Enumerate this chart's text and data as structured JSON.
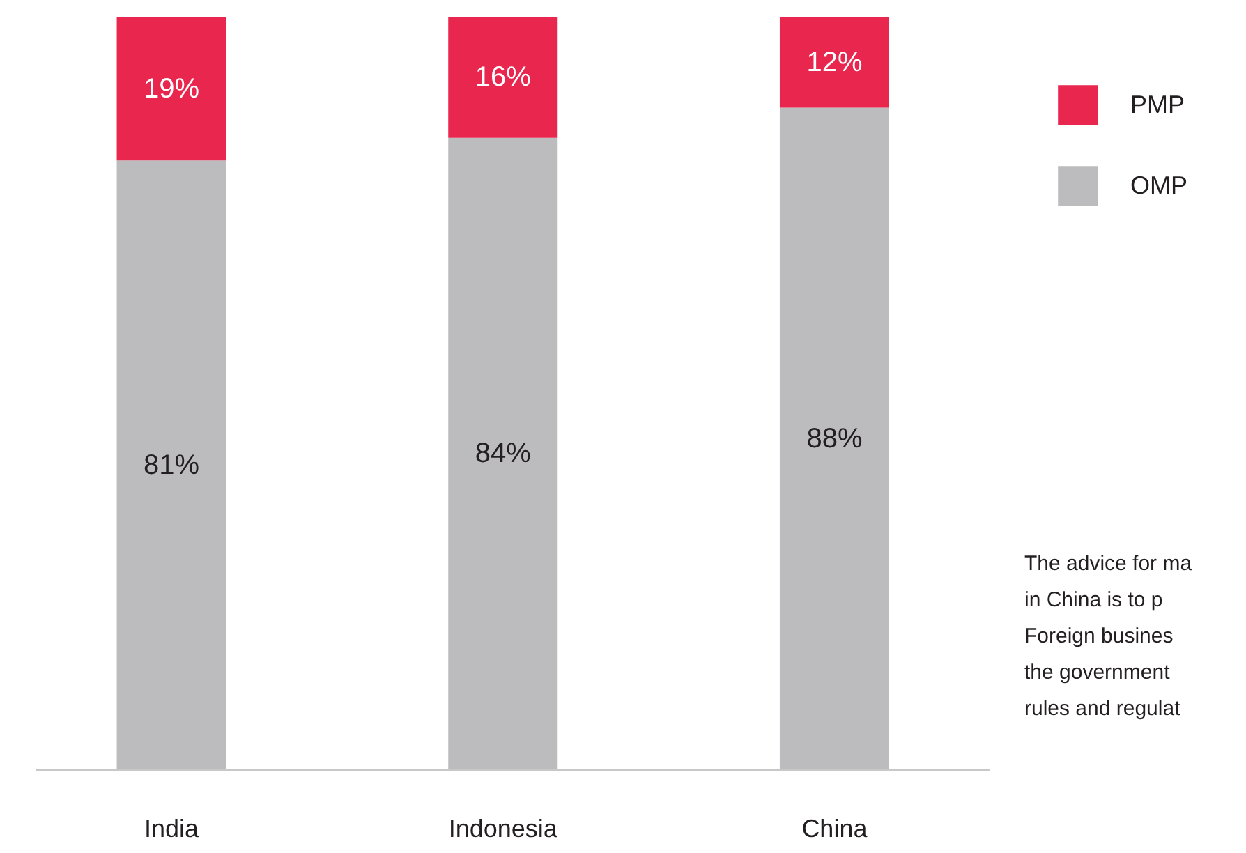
{
  "chart_data": {
    "type": "bar",
    "stacked": true,
    "categories": [
      "India",
      "Indonesia",
      "China"
    ],
    "series": [
      {
        "name": "OMP",
        "color": "#bcbcbe",
        "values": [
          81,
          84,
          88
        ],
        "value_labels": [
          "81%",
          "84%",
          "88%"
        ]
      },
      {
        "name": "PMP",
        "color": "#e8264e",
        "values": [
          19,
          16,
          12
        ],
        "value_labels": [
          "19%",
          "16%",
          "12%"
        ]
      }
    ],
    "legend": "top right",
    "grid": false,
    "tick_labels": "x",
    "annotations": [
      "The advice for ma\nin China is to p\nForeign busines\nthe government\nrules and regulat"
    ]
  }
}
